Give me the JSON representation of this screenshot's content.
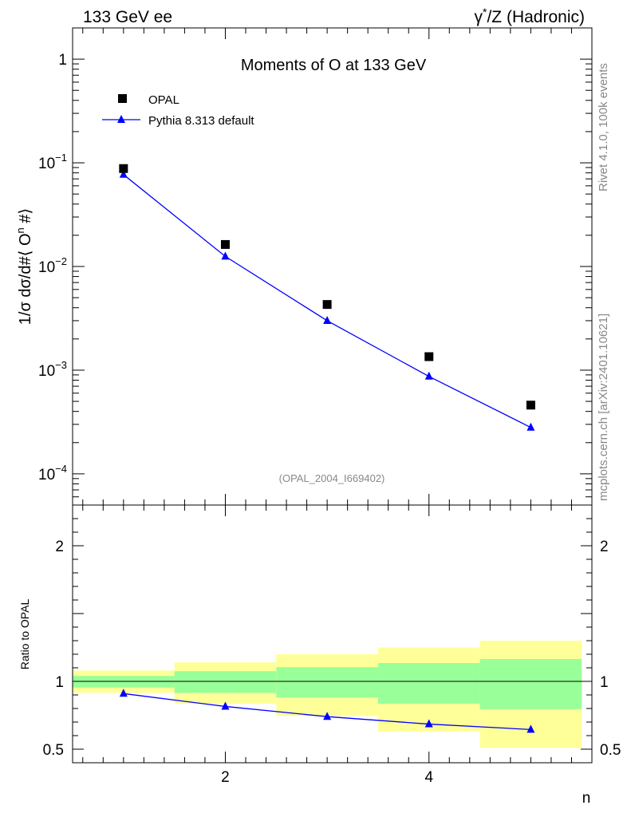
{
  "header": {
    "left": "133 GeV ee",
    "right_prefix": "γ",
    "right_sup": "*",
    "right_suffix": "/Z (Hadronic)"
  },
  "side_labels": {
    "rivet": "Rivet 4.1.0,  100k events",
    "mcplots": "mcplots.cern.ch [arXiv:2401.10621]"
  },
  "chart_data": [
    {
      "type": "scatter",
      "title": "Moments of O at 133 GeV",
      "analysis_tag": "(OPAL_2004_I669402)",
      "ylabel_parts": [
        "1/σ  dσ/d#⟨ O",
        "n",
        " #⟩"
      ],
      "xlabel": "",
      "yscale": "log",
      "ylim": [
        5e-05,
        2.0
      ],
      "xlim": [
        0.5,
        5.6
      ],
      "ytick_labels": [
        {
          "mant": "1",
          "exp": ""
        },
        {
          "mant": "10",
          "exp": "−1"
        },
        {
          "mant": "10",
          "exp": "−2"
        },
        {
          "mant": "10",
          "exp": "−3"
        },
        {
          "mant": "10",
          "exp": "−4"
        }
      ],
      "ytick_values": [
        1,
        0.1,
        0.01,
        0.001,
        0.0001
      ],
      "legend": {
        "placement": "top-left",
        "entries": [
          "OPAL",
          "Pythia 8.313 default"
        ]
      },
      "series": [
        {
          "name": "OPAL",
          "marker": "square",
          "x": [
            1,
            2,
            3,
            4,
            5
          ],
          "values": [
            0.088,
            0.0163,
            0.0043,
            0.00135,
            0.00046
          ]
        },
        {
          "name": "Pythia 8.313 default",
          "marker": "triangle",
          "color": "#0000ff",
          "x": [
            1,
            2,
            3,
            4,
            5
          ],
          "values": [
            0.077,
            0.0125,
            0.003,
            0.00087,
            0.00028
          ]
        }
      ]
    },
    {
      "type": "line",
      "title": "",
      "ylabel": "Ratio to OPAL",
      "xlabel": "n",
      "ylim": [
        0.4,
        2.3
      ],
      "xlim": [
        0.5,
        5.6
      ],
      "ytick_labels": [
        "2",
        "1",
        "0.5"
      ],
      "ytick_values": [
        2,
        1,
        0.5
      ],
      "xtick_labels": [
        "2",
        "4"
      ],
      "xtick_values": [
        2,
        4
      ],
      "bins": [
        {
          "lo": 0.5,
          "hi": 1.5,
          "inner": [
            0.955,
            1.04
          ],
          "outer": [
            0.915,
            1.08
          ]
        },
        {
          "lo": 1.5,
          "hi": 2.5,
          "inner": [
            0.915,
            1.075
          ],
          "outer": [
            0.835,
            1.14
          ]
        },
        {
          "lo": 2.5,
          "hi": 3.5,
          "inner": [
            0.88,
            1.105
          ],
          "outer": [
            0.745,
            1.2
          ]
        },
        {
          "lo": 3.5,
          "hi": 4.5,
          "inner": [
            0.835,
            1.135
          ],
          "outer": [
            0.63,
            1.25
          ]
        },
        {
          "lo": 4.5,
          "hi": 5.5,
          "inner": [
            0.795,
            1.165
          ],
          "outer": [
            0.51,
            1.3
          ]
        }
      ],
      "colors": {
        "inner": "#99ff99",
        "outer": "#ffff99",
        "line": "#0000ff"
      },
      "series": [
        {
          "name": "Pythia 8.313 default / OPAL",
          "x": [
            1,
            2,
            3,
            4,
            5
          ],
          "values": [
            0.91,
            0.815,
            0.74,
            0.685,
            0.645
          ]
        }
      ]
    }
  ]
}
